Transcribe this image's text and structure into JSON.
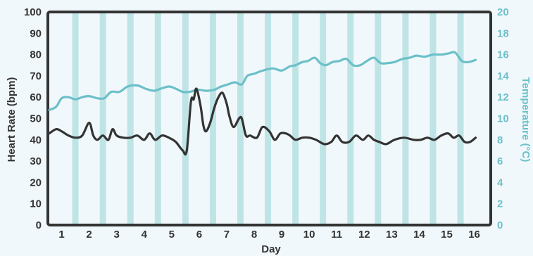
{
  "chart_data": {
    "type": "line",
    "xlabel": "Day",
    "ylabel_left": "Heart Rate (bpm)",
    "ylabel_right": "Temperature (°C)",
    "x_range": [
      0.5,
      16.6
    ],
    "ylim_left": [
      0,
      100
    ],
    "ylim_right": [
      0,
      20
    ],
    "left_ticks": [
      0,
      10,
      20,
      30,
      40,
      50,
      60,
      70,
      80,
      90,
      100
    ],
    "right_ticks": [
      0,
      2,
      4,
      6,
      8,
      10,
      12,
      14,
      16,
      18,
      20
    ],
    "x_ticks": [
      {
        "value": 1,
        "label": "1"
      },
      {
        "value": 2,
        "label": "2"
      },
      {
        "value": 3,
        "label": "3"
      },
      {
        "value": 4,
        "label": "4"
      },
      {
        "value": 5,
        "label": "5"
      },
      {
        "value": 6,
        "label": "6"
      },
      {
        "value": 7,
        "label": "7"
      },
      {
        "value": 8,
        "label": "8"
      },
      {
        "value": 9,
        "label": "9"
      },
      {
        "value": 10,
        "label": "10"
      },
      {
        "value": 11,
        "label": "11"
      },
      {
        "value": 12,
        "label": "12"
      },
      {
        "value": 13,
        "label": "13"
      },
      {
        "value": 14,
        "label": "14"
      },
      {
        "value": 15,
        "label": "15"
      },
      {
        "value": 16,
        "label": "16"
      }
    ],
    "grid": false,
    "vertical_bands": [
      1.5,
      2.5,
      3.5,
      4.5,
      5.5,
      6.5,
      7.5,
      8.5,
      9.5,
      10.5,
      11.5,
      12.5,
      13.5,
      14.5,
      15.5
    ],
    "series": [
      {
        "axis": "left",
        "color": "#333333",
        "x": [
          0.55,
          0.8,
          1.0,
          1.25,
          1.5,
          1.75,
          2.0,
          2.15,
          2.3,
          2.5,
          2.7,
          2.85,
          3.0,
          3.25,
          3.5,
          3.75,
          4.0,
          4.2,
          4.4,
          4.65,
          4.9,
          5.15,
          5.4,
          5.55,
          5.7,
          5.8,
          5.9,
          6.05,
          6.15,
          6.25,
          6.4,
          6.55,
          6.7,
          6.85,
          7.0,
          7.1,
          7.25,
          7.45,
          7.55,
          7.7,
          7.85,
          8.1,
          8.3,
          8.55,
          8.75,
          8.95,
          9.15,
          9.3,
          9.5,
          9.75,
          10.0,
          10.25,
          10.55,
          10.8,
          11.0,
          11.2,
          11.45,
          11.7,
          11.95,
          12.15,
          12.35,
          12.55,
          12.8,
          13.1,
          13.45,
          13.8,
          14.05,
          14.3,
          14.55,
          14.8,
          15.05,
          15.25,
          15.45,
          15.65,
          15.85,
          16.05
        ],
        "values": [
          43,
          45,
          44,
          42,
          41,
          42,
          48,
          42,
          40,
          42,
          40,
          45,
          42,
          41,
          41,
          42,
          40,
          43,
          40,
          42,
          41,
          39,
          35,
          35,
          58,
          59,
          64,
          56,
          47,
          44,
          48,
          55,
          60,
          62,
          57,
          51,
          46,
          50,
          50,
          42,
          42,
          41,
          46,
          44,
          40,
          43,
          43,
          42,
          40,
          41,
          41,
          40,
          38,
          39,
          42,
          39,
          39,
          42,
          40,
          42,
          40,
          39,
          38,
          40,
          41,
          40,
          40,
          41,
          40,
          42,
          43,
          41,
          42,
          39,
          39,
          41
        ]
      },
      {
        "axis": "right",
        "color": "#6cc0c9",
        "x": [
          0.55,
          0.8,
          1.0,
          1.25,
          1.5,
          1.75,
          2.0,
          2.3,
          2.55,
          2.8,
          3.1,
          3.4,
          3.75,
          4.05,
          4.35,
          4.6,
          4.9,
          5.15,
          5.4,
          5.65,
          5.95,
          6.25,
          6.55,
          6.8,
          7.05,
          7.3,
          7.55,
          7.75,
          8.0,
          8.2,
          8.45,
          8.7,
          9.0,
          9.3,
          9.5,
          9.75,
          9.95,
          10.2,
          10.4,
          10.6,
          10.85,
          11.1,
          11.35,
          11.6,
          11.85,
          12.1,
          12.35,
          12.6,
          12.85,
          13.1,
          13.4,
          13.65,
          13.9,
          14.2,
          14.5,
          14.8,
          15.05,
          15.3,
          15.55,
          15.8,
          16.05
        ],
        "values": [
          10.8,
          11.1,
          11.9,
          12.0,
          11.8,
          12.0,
          12.1,
          11.9,
          11.9,
          12.5,
          12.5,
          13.0,
          13.1,
          12.8,
          12.6,
          12.8,
          13.0,
          12.8,
          12.5,
          12.5,
          12.7,
          12.6,
          12.7,
          13.0,
          13.2,
          13.4,
          13.2,
          14.0,
          14.2,
          14.4,
          14.6,
          14.7,
          14.5,
          14.9,
          15.0,
          15.3,
          15.4,
          15.7,
          15.2,
          15.0,
          15.3,
          15.4,
          15.6,
          15.0,
          15.0,
          15.4,
          15.7,
          15.2,
          15.2,
          15.3,
          15.6,
          15.7,
          15.9,
          15.8,
          16.0,
          16.0,
          16.1,
          16.2,
          15.4,
          15.3,
          15.5
        ]
      }
    ]
  }
}
